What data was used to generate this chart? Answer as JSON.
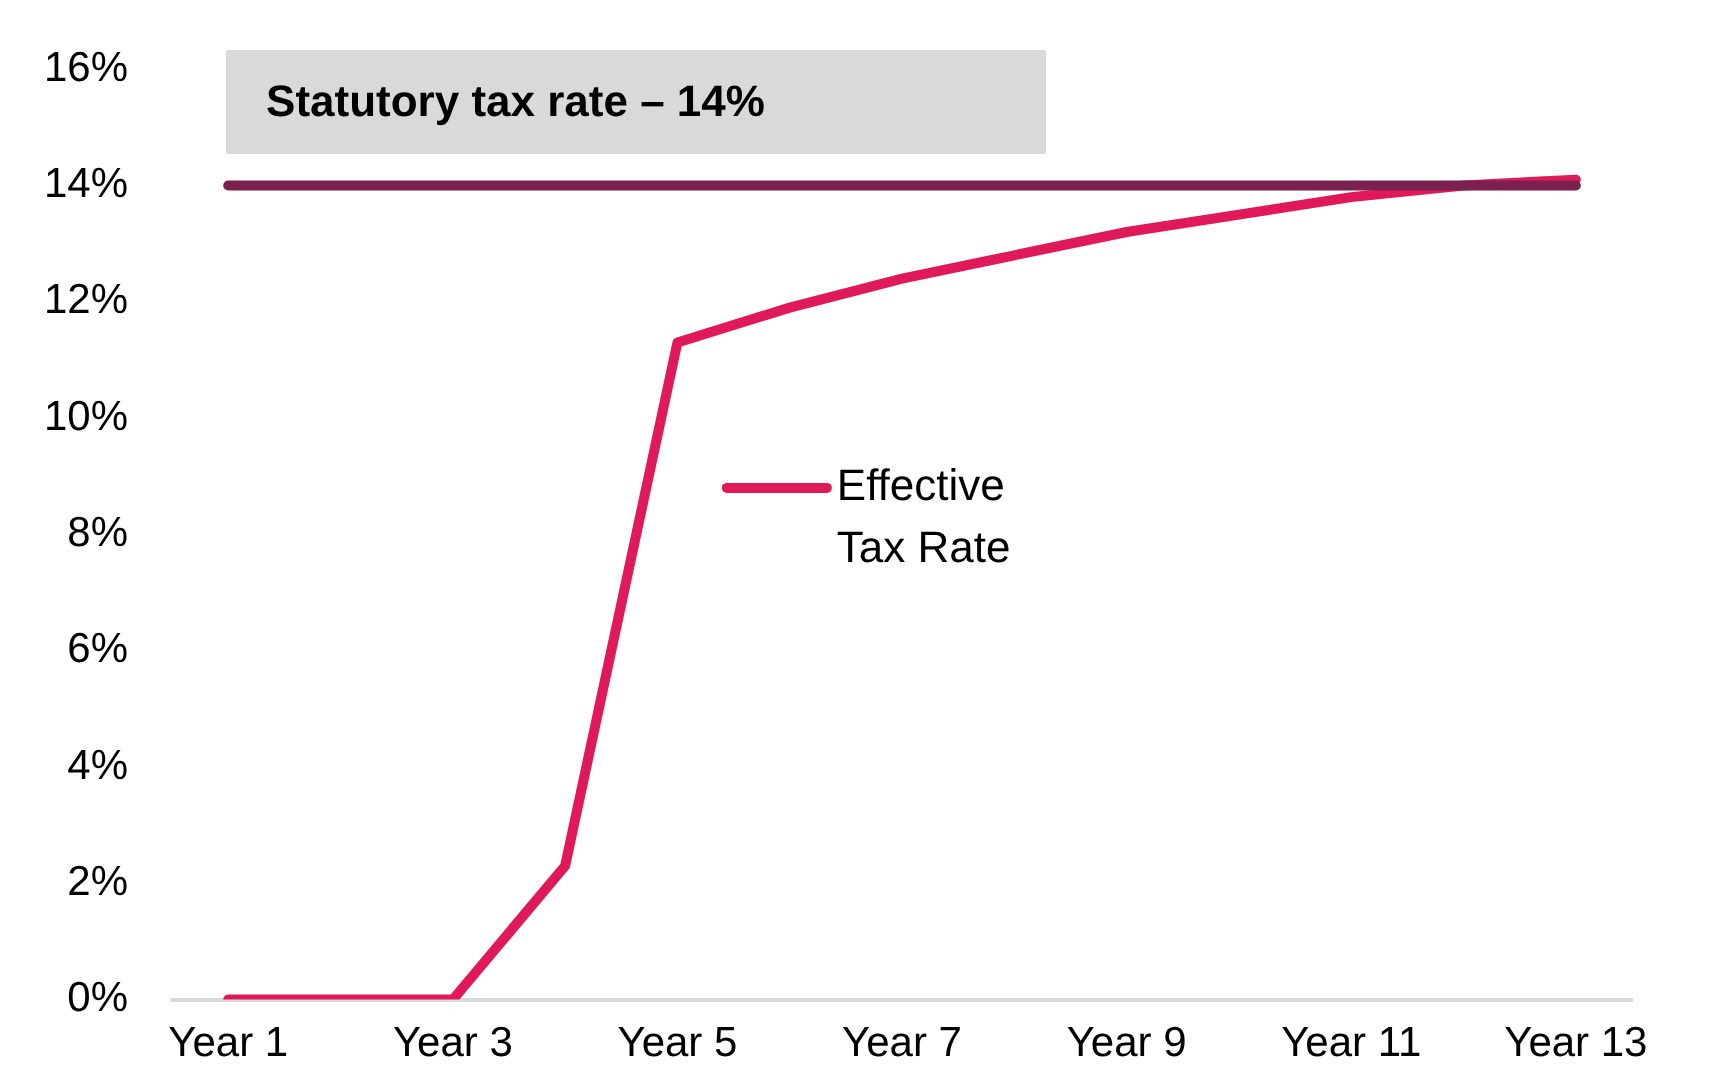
{
  "chart_data": {
    "type": "line",
    "categories": [
      "Year 1",
      null,
      "Year 3",
      null,
      "Year 5",
      null,
      "Year 7",
      null,
      "Year 9",
      null,
      "Year 11",
      null,
      "Year 13"
    ],
    "series": [
      {
        "values": [
          14,
          14,
          14,
          14,
          14,
          14,
          14,
          14,
          14,
          14,
          14,
          14,
          14
        ],
        "color": "#7b2150"
      },
      {
        "name": "Effective Tax Rate",
        "values": [
          0,
          0,
          0,
          2.3,
          11.3,
          11.9,
          12.4,
          12.8,
          13.2,
          13.5,
          13.8,
          14.0,
          14.1
        ],
        "color": "#e0195a"
      }
    ],
    "annotations": [
      "Statutory tax rate – 14%"
    ],
    "ylim": [
      0,
      16
    ],
    "yticks": [
      {
        "value": 0,
        "label": "0%"
      },
      {
        "value": 2,
        "label": "2%"
      },
      {
        "value": 4,
        "label": "4%"
      },
      {
        "value": 6,
        "label": "6%"
      },
      {
        "value": 8,
        "label": "8%"
      },
      {
        "value": 10,
        "label": "10%"
      },
      {
        "value": 12,
        "label": "12%"
      },
      {
        "value": 14,
        "label": "14%"
      },
      {
        "value": 16,
        "label": "16%"
      }
    ],
    "grid": false,
    "legend": "center",
    "marker": "none",
    "line_style": "solid"
  }
}
